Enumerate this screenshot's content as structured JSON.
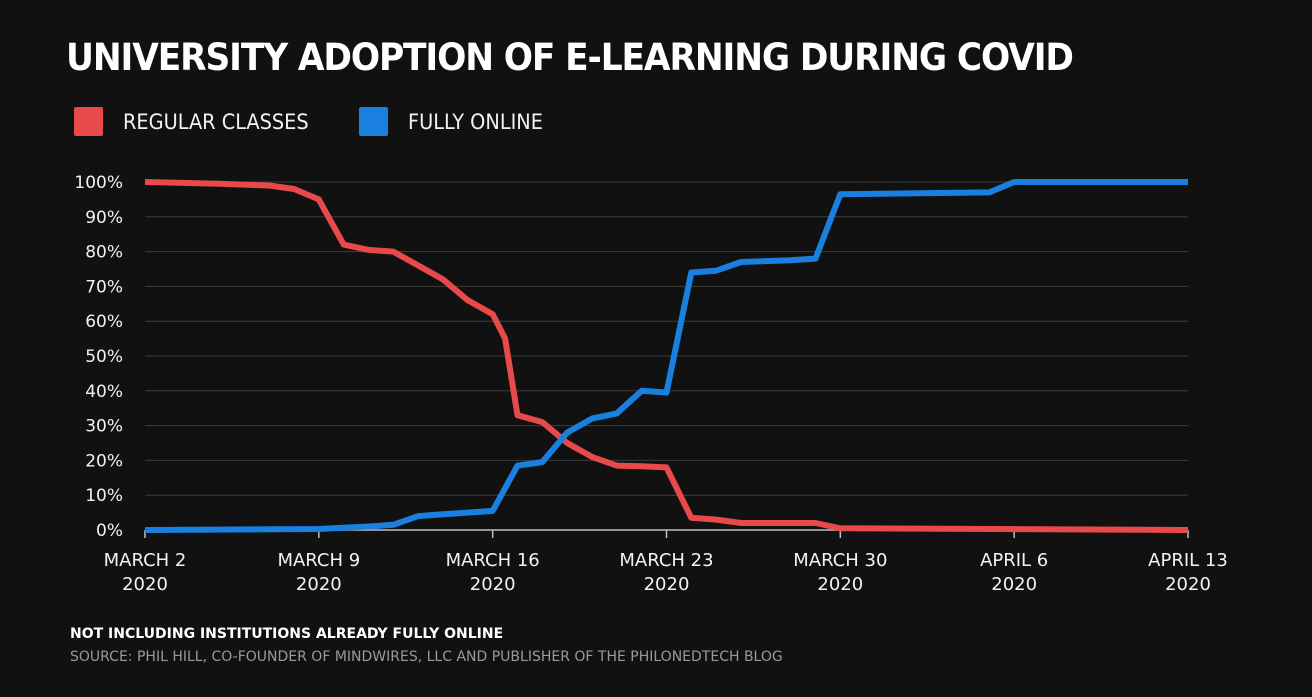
{
  "chart_data": {
    "type": "line",
    "title": "UNIVERSITY ADOPTION OF E-LEARNING DURING COVID",
    "footnote": "NOT INCLUDING INSTITUTIONS ALREADY FULLY ONLINE",
    "source": "SOURCE: PHIL HILL, CO-FOUNDER OF MINDWIRES, LLC AND PUBLISHER OF THE PHILONEDTECH BLOG",
    "xlabel": "",
    "ylabel": "",
    "ylim": [
      0,
      100
    ],
    "xlim": [
      "2020-03-02",
      "2020-04-13"
    ],
    "grid": true,
    "legend_position": "top-left",
    "y_ticks": [
      "0%",
      "10%",
      "20%",
      "30%",
      "40%",
      "50%",
      "60%",
      "70%",
      "80%",
      "90%",
      "100%"
    ],
    "x_ticks": [
      {
        "line1": "MARCH 2",
        "line2": "2020"
      },
      {
        "line1": "MARCH 9",
        "line2": "2020"
      },
      {
        "line1": "MARCH 16",
        "line2": "2020"
      },
      {
        "line1": "MARCH 23",
        "line2": "2020"
      },
      {
        "line1": "MARCH 30",
        "line2": "2020"
      },
      {
        "line1": "APRIL 6",
        "line2": "2020"
      },
      {
        "line1": "APRIL 13",
        "line2": "2020"
      }
    ],
    "series": [
      {
        "name": "REGULAR CLASSES",
        "color": "#e8494b",
        "points": [
          {
            "x": "2020-03-02",
            "y": 100
          },
          {
            "x": "2020-03-05",
            "y": 99.5
          },
          {
            "x": "2020-03-07",
            "y": 99
          },
          {
            "x": "2020-03-08",
            "y": 98
          },
          {
            "x": "2020-03-09",
            "y": 95
          },
          {
            "x": "2020-03-10",
            "y": 82
          },
          {
            "x": "2020-03-11",
            "y": 80.5
          },
          {
            "x": "2020-03-12",
            "y": 80
          },
          {
            "x": "2020-03-13",
            "y": 76
          },
          {
            "x": "2020-03-14",
            "y": 72
          },
          {
            "x": "2020-03-15",
            "y": 66
          },
          {
            "x": "2020-03-16",
            "y": 62
          },
          {
            "x": "2020-03-16.5",
            "y": 55
          },
          {
            "x": "2020-03-17",
            "y": 33
          },
          {
            "x": "2020-03-18",
            "y": 31
          },
          {
            "x": "2020-03-19",
            "y": 25
          },
          {
            "x": "2020-03-20",
            "y": 21
          },
          {
            "x": "2020-03-21",
            "y": 18.5
          },
          {
            "x": "2020-03-22",
            "y": 18.3
          },
          {
            "x": "2020-03-23",
            "y": 18
          },
          {
            "x": "2020-03-24",
            "y": 3.5
          },
          {
            "x": "2020-03-25",
            "y": 3
          },
          {
            "x": "2020-03-26",
            "y": 2
          },
          {
            "x": "2020-03-29",
            "y": 2
          },
          {
            "x": "2020-03-30",
            "y": 0.5
          },
          {
            "x": "2020-04-13",
            "y": 0
          }
        ]
      },
      {
        "name": "FULLY ONLINE",
        "color": "#1a80e0",
        "points": [
          {
            "x": "2020-03-02",
            "y": 0
          },
          {
            "x": "2020-03-09",
            "y": 0.3
          },
          {
            "x": "2020-03-11",
            "y": 1
          },
          {
            "x": "2020-03-12",
            "y": 1.5
          },
          {
            "x": "2020-03-13",
            "y": 4
          },
          {
            "x": "2020-03-14",
            "y": 4.5
          },
          {
            "x": "2020-03-15",
            "y": 5
          },
          {
            "x": "2020-03-16",
            "y": 5.5
          },
          {
            "x": "2020-03-17",
            "y": 18.5
          },
          {
            "x": "2020-03-18",
            "y": 19.5
          },
          {
            "x": "2020-03-19",
            "y": 28
          },
          {
            "x": "2020-03-20",
            "y": 32
          },
          {
            "x": "2020-03-21",
            "y": 33.5
          },
          {
            "x": "2020-03-22",
            "y": 40
          },
          {
            "x": "2020-03-23",
            "y": 39.5
          },
          {
            "x": "2020-03-24",
            "y": 74
          },
          {
            "x": "2020-03-25",
            "y": 74.5
          },
          {
            "x": "2020-03-26",
            "y": 77
          },
          {
            "x": "2020-03-28",
            "y": 77.5
          },
          {
            "x": "2020-03-29",
            "y": 78
          },
          {
            "x": "2020-03-30",
            "y": 96.5
          },
          {
            "x": "2020-04-05",
            "y": 97
          },
          {
            "x": "2020-04-06",
            "y": 100
          },
          {
            "x": "2020-04-13",
            "y": 100
          }
        ]
      }
    ]
  }
}
